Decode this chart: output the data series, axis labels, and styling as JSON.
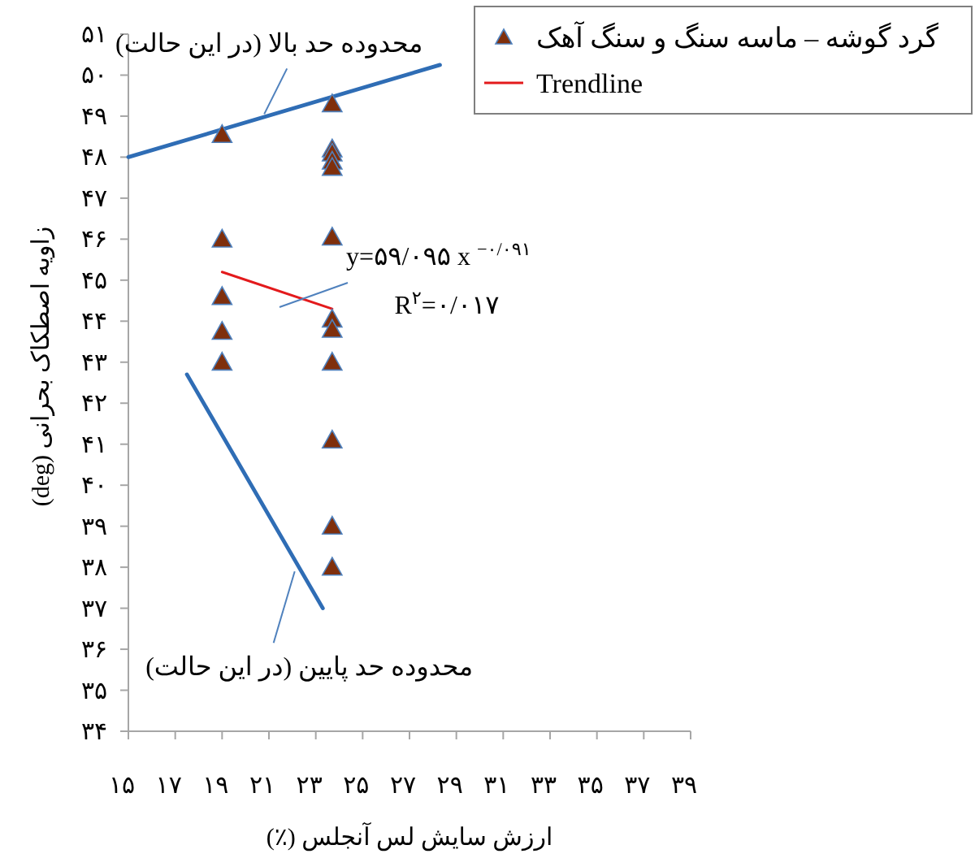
{
  "chart_data": {
    "type": "scatter",
    "xlabel": "ارزش سایش لس آنجلس (٪)",
    "ylabel": "زاویه اصطکاک بحرانی (deg)",
    "xlim": [
      15,
      39
    ],
    "ylim": [
      34,
      51
    ],
    "xticks": [
      {
        "value": 15,
        "label": "۱۵"
      },
      {
        "value": 17,
        "label": "۱۷"
      },
      {
        "value": 19,
        "label": "۱۹"
      },
      {
        "value": 21,
        "label": "۲۱"
      },
      {
        "value": 23,
        "label": "۲۳"
      },
      {
        "value": 25,
        "label": "۲۵"
      },
      {
        "value": 27,
        "label": "۲۷"
      },
      {
        "value": 29,
        "label": "۲۹"
      },
      {
        "value": 31,
        "label": "۳۱"
      },
      {
        "value": 33,
        "label": "۳۳"
      },
      {
        "value": 35,
        "label": "۳۵"
      },
      {
        "value": 37,
        "label": "۳۷"
      },
      {
        "value": 39,
        "label": "۳۹"
      }
    ],
    "yticks": [
      {
        "value": 34,
        "label": "۳۴"
      },
      {
        "value": 35,
        "label": "۳۵"
      },
      {
        "value": 36,
        "label": "۳۶"
      },
      {
        "value": 37,
        "label": "۳۷"
      },
      {
        "value": 38,
        "label": "۳۸"
      },
      {
        "value": 39,
        "label": "۳۹"
      },
      {
        "value": 40,
        "label": "۴۰"
      },
      {
        "value": 41,
        "label": "۴۱"
      },
      {
        "value": 42,
        "label": "۴۲"
      },
      {
        "value": 43,
        "label": "۴۳"
      },
      {
        "value": 44,
        "label": "۴۴"
      },
      {
        "value": 45,
        "label": "۴۵"
      },
      {
        "value": 46,
        "label": "۴۶"
      },
      {
        "value": 47,
        "label": "۴۷"
      },
      {
        "value": 48,
        "label": "۴۸"
      },
      {
        "value": 49,
        "label": "۴۹"
      },
      {
        "value": 50,
        "label": "۵۰"
      },
      {
        "value": 51,
        "label": "۵۱"
      }
    ],
    "legend": "top right",
    "grid": false,
    "series": [
      {
        "name": "گرد گوشه – ماسه سنگ و سنگ آهک",
        "marker": "triangle",
        "color": "#7f2f0c",
        "x": [
          19,
          19,
          19,
          19,
          19,
          23.7,
          23.7,
          23.7,
          23.7,
          23.7,
          23.7,
          23.7,
          23.7,
          23.7,
          23.7,
          23.7,
          23.7
        ],
        "values": [
          48.55,
          46.0,
          44.6,
          43.75,
          43.0,
          49.3,
          48.2,
          48.1,
          47.9,
          47.75,
          46.05,
          44.05,
          43.8,
          43.0,
          41.1,
          39.0,
          38.0
        ]
      },
      {
        "name": "Trendline",
        "type": "line",
        "color": "#e31a1c",
        "x": [
          19,
          23.7
        ],
        "values": [
          45.2,
          44.3
        ]
      },
      {
        "type": "line",
        "color": "#2f6db5",
        "x": [
          15,
          28.3
        ],
        "values": [
          48.0,
          50.25
        ]
      },
      {
        "type": "line",
        "color": "#2f6db5",
        "x": [
          17.5,
          23.3
        ],
        "values": [
          42.7,
          37.0
        ]
      }
    ],
    "annotations": [
      {
        "text": "محدوده حد بالا (در این حالت)",
        "x": 20.8,
        "y": 49.05
      },
      "y=۵۹/۰۹۵ x $^{−۰/۰۹۱}$",
      "R$^{۲}$=۰/۰۱۷",
      {
        "text": "محدوده حد پایین (در این حالت)",
        "x": 22.1,
        "y": 37.9
      }
    ]
  }
}
